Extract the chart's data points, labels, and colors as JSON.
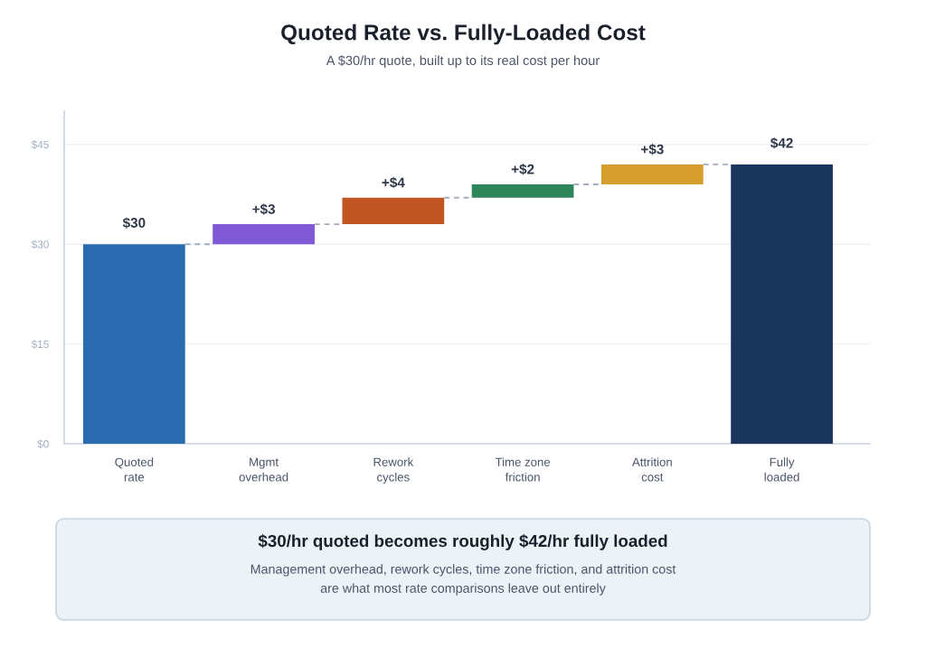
{
  "chart_data": {
    "type": "bar",
    "title": "Quoted Rate vs. Fully-Loaded Cost",
    "subtitle": "A $30/hr quote, built up to its real cost per hour",
    "categories": [
      "Quoted\nrate",
      "Mgmt\noverhead",
      "Rework\ncycles",
      "Time zone\nfriction",
      "Attrition\ncost",
      "Fully\nloaded"
    ],
    "values": [
      30,
      3,
      4,
      2,
      3,
      42
    ],
    "base": [
      0,
      30,
      33,
      37,
      39,
      0
    ],
    "colors": [
      "#2b6cb0",
      "#805ad5",
      "#c05621",
      "#2f855a",
      "#d69e2e",
      "#1a365d"
    ],
    "value_labels": [
      "$30",
      "+$3",
      "+$4",
      "+$2",
      "+$3",
      "$42"
    ],
    "ylim": [
      0,
      50
    ],
    "yticks": [
      {
        "value": 0,
        "label": "$0"
      },
      {
        "value": 15,
        "label": "$15"
      },
      {
        "value": 30,
        "label": "$30"
      },
      {
        "value": 45,
        "label": "$45"
      }
    ],
    "grid": "y",
    "annotations": [
      "$30/hr quoted becomes roughly $42/hr fully loaded",
      "Management overhead, rework cycles, time zone friction, and attrition cost\nare what most rate comparisons leave out entirely"
    ]
  }
}
